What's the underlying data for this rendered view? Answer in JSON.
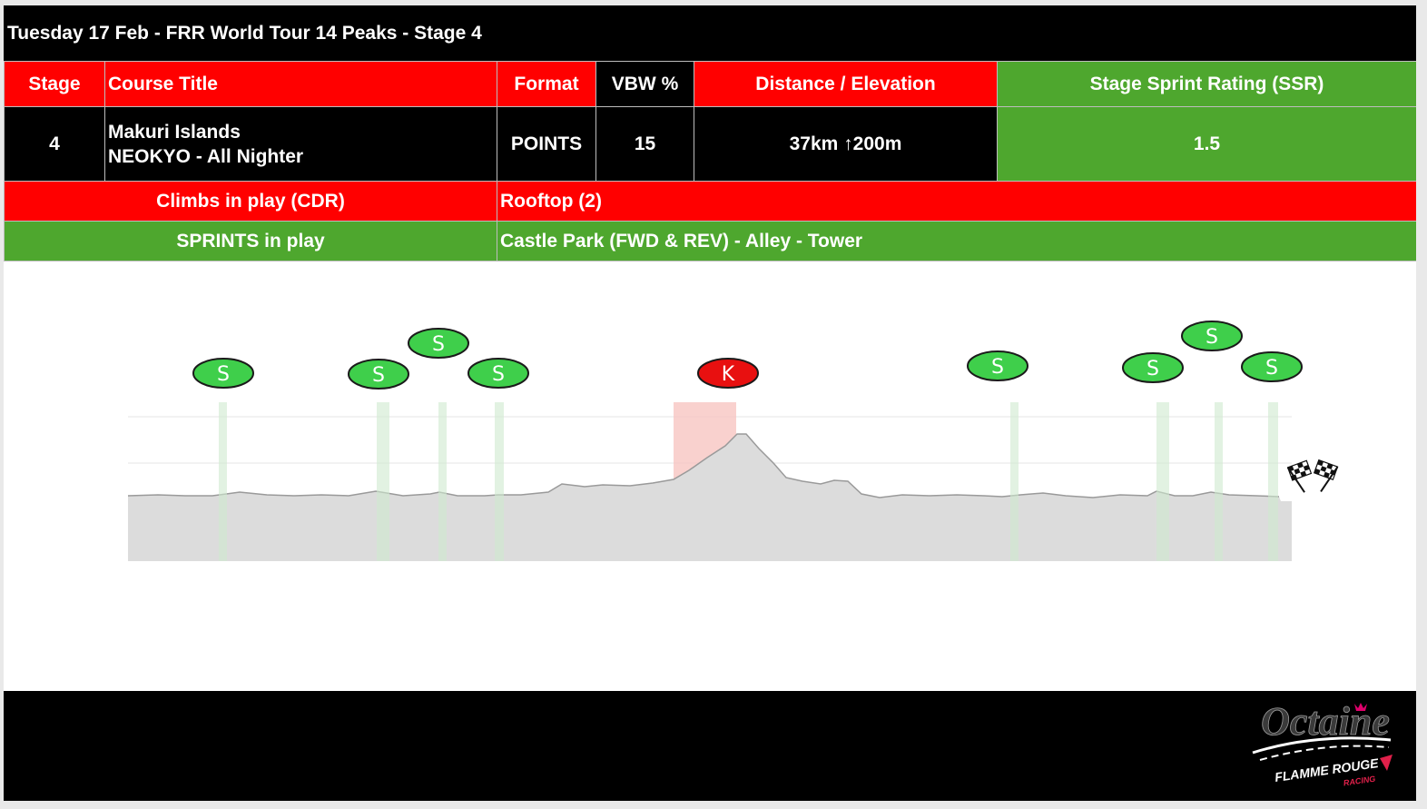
{
  "title": "Tuesday 17 Feb - FRR World Tour 14 Peaks - Stage 4",
  "headers": {
    "stage": "Stage",
    "course_title": "Course Title",
    "format": "Format",
    "vbw": "VBW %",
    "distance_elevation": "Distance / Elevation",
    "ssr": "Stage Sprint Rating (SSR)"
  },
  "row": {
    "stage": "4",
    "course_line1": "Makuri Islands",
    "course_line2": "NEOKYO - All Nighter",
    "format": "POINTS",
    "vbw": "15",
    "distance_elevation": "37km ↑200m",
    "ssr": "1.5"
  },
  "climbs": {
    "label": "Climbs in play (CDR)",
    "value": "Rooftop (2)"
  },
  "sprints": {
    "label": "SPRINTS in play",
    "value": "Castle Park (FWD & REV) - Alley - Tower"
  },
  "markers": [
    {
      "letter": "S",
      "type": "sprint"
    },
    {
      "letter": "S",
      "type": "sprint"
    },
    {
      "letter": "S",
      "type": "sprint"
    },
    {
      "letter": "S",
      "type": "sprint"
    },
    {
      "letter": "K",
      "type": "climb"
    },
    {
      "letter": "S",
      "type": "sprint"
    },
    {
      "letter": "S",
      "type": "sprint"
    },
    {
      "letter": "S",
      "type": "sprint"
    },
    {
      "letter": "S",
      "type": "sprint"
    }
  ],
  "colors": {
    "red": "#ff0000",
    "green": "#4ea72e",
    "sprint_marker": "#3fcf4b",
    "climb_marker": "#e81010",
    "profile_fill": "#dcdcdc"
  },
  "logo": {
    "brand": "Octaine",
    "sub1": "FLAMME ROUGE",
    "sub2": "RACING"
  }
}
